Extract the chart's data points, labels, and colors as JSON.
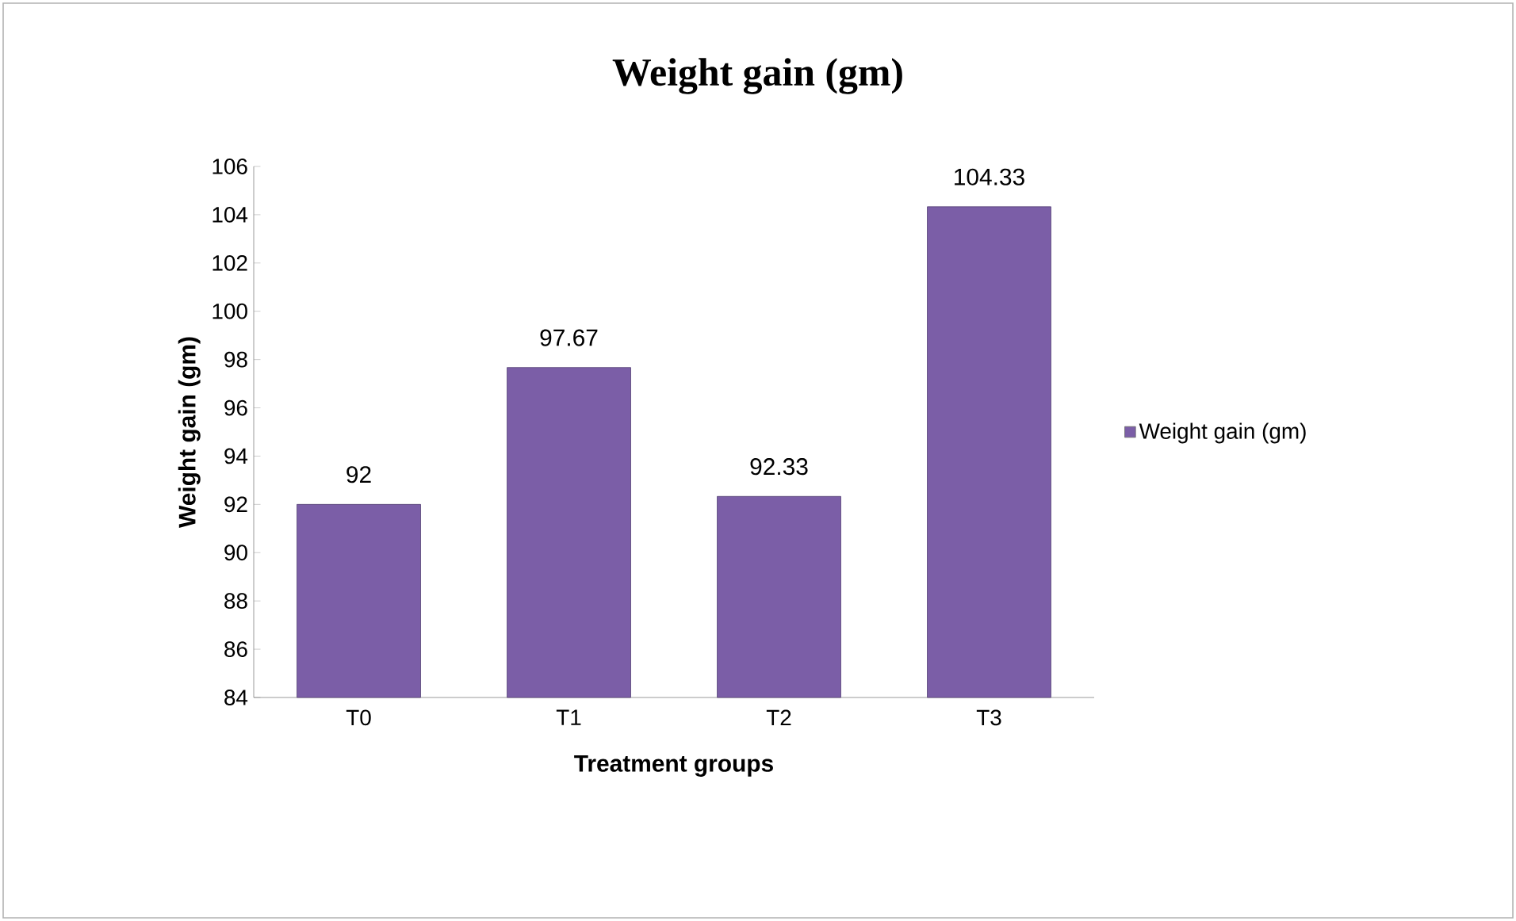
{
  "chart_data": {
    "type": "bar",
    "title": "Weight gain (gm)",
    "xlabel": "Treatment groups",
    "ylabel": "Weight gain (gm)",
    "categories": [
      "T0",
      "T1",
      "T2",
      "T3"
    ],
    "series": [
      {
        "name": "Weight gain (gm)",
        "color": "#7b5ea7",
        "values": [
          92,
          97.67,
          92.33,
          104.33
        ],
        "value_labels": [
          "92",
          "97.67",
          "92.33",
          "104.33"
        ]
      }
    ],
    "ylim": [
      84,
      106
    ],
    "yticks": [
      84,
      86,
      88,
      90,
      92,
      94,
      96,
      98,
      100,
      102,
      104,
      106
    ],
    "grid": false,
    "legend": "right"
  }
}
